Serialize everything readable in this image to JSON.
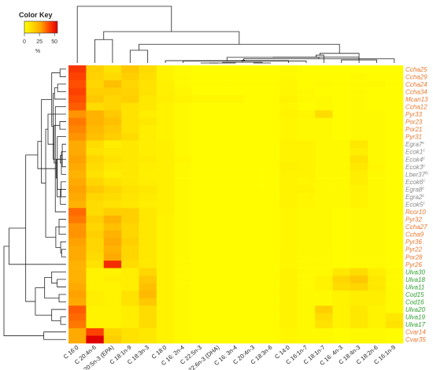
{
  "chart_data": {
    "type": "heatmap",
    "color_key": {
      "title": "Color Key",
      "ticks": [
        "0",
        "25",
        "50"
      ],
      "unit": "%",
      "range": [
        0,
        55
      ],
      "colors": [
        "#ffff00",
        "#ffd700",
        "#ffa500",
        "#ff4500",
        "#e00000"
      ]
    },
    "columns": [
      "C 16:0",
      "C 20:4n-6",
      "C 20:5n-3 (EPA)",
      "C 18:1n-9",
      "C 18:3n-3",
      "C 18:0",
      "C 16: 2n-4",
      "C 22:5n-3",
      "C 22:6n-3 (DHA)",
      "C 16: 3n-4",
      "C 20:4n-3",
      "C 18:3n-6",
      "C 14:0",
      "C 16:1n-7",
      "C 18:1n-7",
      "C 16: 4n-3",
      "C 18:4n-3",
      "C 18:2n-6",
      "C 16:1n-9"
    ],
    "rows": [
      {
        "label": "Ccha25",
        "sup": "",
        "color": "#e8772c",
        "values": [
          44,
          16,
          10,
          18,
          12,
          4,
          2,
          1,
          1,
          1,
          1,
          1,
          2,
          1,
          1,
          1,
          1,
          1,
          1
        ]
      },
      {
        "label": "Ccha29",
        "sup": "",
        "color": "#e8772c",
        "values": [
          42,
          15,
          12,
          16,
          11,
          4,
          2,
          1,
          1,
          1,
          1,
          1,
          2,
          1,
          1,
          1,
          2,
          1,
          1
        ]
      },
      {
        "label": "Ccha24",
        "sup": "",
        "color": "#e8772c",
        "values": [
          40,
          14,
          20,
          14,
          10,
          5,
          2,
          1,
          1,
          1,
          1,
          1,
          3,
          1,
          2,
          1,
          2,
          2,
          1
        ]
      },
      {
        "label": "Ccha34",
        "sup": "",
        "color": "#e8772c",
        "values": [
          42,
          16,
          16,
          15,
          10,
          5,
          3,
          1,
          1,
          1,
          1,
          1,
          3,
          2,
          1,
          1,
          2,
          1,
          1
        ]
      },
      {
        "label": "Mcan13",
        "sup": "",
        "color": "#e8772c",
        "values": [
          40,
          18,
          14,
          16,
          8,
          6,
          4,
          3,
          3,
          3,
          1,
          1,
          4,
          2,
          2,
          1,
          2,
          1,
          1
        ]
      },
      {
        "label": "Ccha12",
        "sup": "",
        "color": "#e8772c",
        "values": [
          38,
          12,
          14,
          10,
          8,
          4,
          2,
          1,
          1,
          1,
          1,
          1,
          3,
          1,
          2,
          1,
          2,
          1,
          1
        ]
      },
      {
        "label": "Pyr33",
        "sup": "",
        "color": "#e8772c",
        "values": [
          30,
          24,
          18,
          10,
          6,
          4,
          2,
          1,
          1,
          1,
          1,
          1,
          4,
          3,
          12,
          1,
          2,
          2,
          1
        ]
      },
      {
        "label": "Por23",
        "sup": "",
        "color": "#e8772c",
        "values": [
          34,
          24,
          20,
          10,
          8,
          4,
          2,
          1,
          1,
          1,
          1,
          1,
          3,
          2,
          2,
          1,
          2,
          2,
          1
        ]
      },
      {
        "label": "Por21",
        "sup": "",
        "color": "#e8772c",
        "values": [
          32,
          22,
          18,
          10,
          6,
          4,
          2,
          1,
          1,
          1,
          1,
          1,
          3,
          2,
          2,
          1,
          2,
          2,
          1
        ]
      },
      {
        "label": "Pyr31",
        "sup": "",
        "color": "#e8772c",
        "values": [
          30,
          20,
          16,
          12,
          6,
          4,
          2,
          1,
          1,
          1,
          1,
          1,
          3,
          2,
          2,
          1,
          2,
          2,
          1
        ]
      },
      {
        "label": "Egra7",
        "sup": "c",
        "color": "#888888",
        "values": [
          26,
          12,
          6,
          8,
          6,
          5,
          2,
          1,
          1,
          1,
          1,
          1,
          4,
          4,
          2,
          2,
          8,
          2,
          1
        ]
      },
      {
        "label": "Ecok1",
        "sup": "c",
        "color": "#888888",
        "values": [
          26,
          10,
          8,
          8,
          6,
          5,
          2,
          1,
          1,
          1,
          1,
          1,
          4,
          4,
          2,
          2,
          6,
          2,
          1
        ]
      },
      {
        "label": "Ecok4",
        "sup": "c",
        "color": "#888888",
        "values": [
          28,
          14,
          10,
          8,
          7,
          5,
          3,
          1,
          1,
          1,
          1,
          1,
          4,
          4,
          2,
          2,
          10,
          2,
          1
        ]
      },
      {
        "label": "Ecok3",
        "sup": "c",
        "color": "#888888",
        "values": [
          26,
          12,
          8,
          8,
          6,
          5,
          2,
          1,
          1,
          1,
          1,
          1,
          5,
          4,
          2,
          2,
          8,
          3,
          1
        ]
      },
      {
        "label": "Lber37",
        "sup": "fc",
        "color": "#888888",
        "values": [
          24,
          10,
          6,
          8,
          5,
          5,
          2,
          1,
          1,
          1,
          1,
          1,
          4,
          4,
          2,
          2,
          6,
          2,
          1
        ]
      },
      {
        "label": "Ecok6",
        "sup": "c",
        "color": "#888888",
        "values": [
          26,
          14,
          10,
          8,
          6,
          5,
          2,
          1,
          1,
          1,
          1,
          1,
          4,
          3,
          2,
          2,
          6,
          2,
          1
        ]
      },
      {
        "label": "Egra8",
        "sup": "c",
        "color": "#888888",
        "values": [
          28,
          18,
          14,
          10,
          8,
          5,
          2,
          1,
          1,
          1,
          1,
          1,
          4,
          4,
          2,
          2,
          4,
          2,
          1
        ]
      },
      {
        "label": "Egra2",
        "sup": "c",
        "color": "#888888",
        "values": [
          26,
          14,
          12,
          9,
          7,
          5,
          2,
          1,
          1,
          1,
          1,
          1,
          4,
          3,
          2,
          2,
          4,
          2,
          1
        ]
      },
      {
        "label": "Ecok5",
        "sup": "c",
        "color": "#888888",
        "values": [
          24,
          12,
          10,
          8,
          6,
          5,
          2,
          1,
          1,
          1,
          1,
          1,
          4,
          3,
          2,
          2,
          4,
          2,
          1
        ]
      },
      {
        "label": "Rcor10",
        "sup": "",
        "color": "#e8772c",
        "values": [
          36,
          12,
          16,
          16,
          8,
          5,
          2,
          1,
          1,
          1,
          1,
          1,
          3,
          2,
          2,
          1,
          2,
          2,
          1
        ]
      },
      {
        "label": "Pyr32",
        "sup": "",
        "color": "#e8772c",
        "values": [
          34,
          16,
          24,
          16,
          8,
          4,
          2,
          1,
          1,
          1,
          1,
          1,
          3,
          2,
          2,
          1,
          2,
          2,
          1
        ]
      },
      {
        "label": "Ccha27",
        "sup": "",
        "color": "#e8772c",
        "values": [
          30,
          14,
          20,
          14,
          8,
          4,
          2,
          1,
          1,
          1,
          1,
          1,
          3,
          2,
          2,
          1,
          2,
          2,
          1
        ]
      },
      {
        "label": "Ccha9",
        "sup": "",
        "color": "#e8772c",
        "values": [
          30,
          16,
          24,
          14,
          8,
          4,
          2,
          1,
          1,
          1,
          1,
          1,
          3,
          2,
          2,
          1,
          2,
          2,
          1
        ]
      },
      {
        "label": "Pyr36",
        "sup": "",
        "color": "#e8772c",
        "values": [
          28,
          14,
          26,
          16,
          8,
          4,
          2,
          1,
          1,
          1,
          1,
          1,
          3,
          2,
          2,
          1,
          2,
          2,
          1
        ]
      },
      {
        "label": "Pyr22",
        "sup": "",
        "color": "#e8772c",
        "values": [
          26,
          14,
          24,
          14,
          8,
          4,
          2,
          1,
          1,
          1,
          1,
          1,
          3,
          2,
          2,
          1,
          2,
          2,
          1
        ]
      },
      {
        "label": "Por28",
        "sup": "",
        "color": "#e8772c",
        "values": [
          26,
          12,
          26,
          14,
          8,
          4,
          2,
          1,
          1,
          1,
          1,
          1,
          3,
          2,
          2,
          1,
          2,
          2,
          1
        ]
      },
      {
        "label": "Pyr26",
        "sup": "",
        "color": "#e8772c",
        "values": [
          24,
          10,
          46,
          12,
          8,
          4,
          2,
          1,
          1,
          1,
          1,
          1,
          3,
          2,
          2,
          1,
          2,
          2,
          1
        ]
      },
      {
        "label": "Ulva30",
        "sup": "",
        "color": "#2e9e2e",
        "values": [
          24,
          4,
          4,
          6,
          14,
          4,
          2,
          1,
          1,
          1,
          1,
          1,
          4,
          2,
          2,
          8,
          12,
          6,
          2
        ]
      },
      {
        "label": "Ulva18",
        "sup": "",
        "color": "#2e9e2e",
        "values": [
          24,
          4,
          6,
          6,
          18,
          4,
          2,
          1,
          1,
          1,
          1,
          1,
          4,
          2,
          4,
          14,
          18,
          8,
          2
        ]
      },
      {
        "label": "Ulva11",
        "sup": "",
        "color": "#2e9e2e",
        "values": [
          26,
          4,
          4,
          6,
          20,
          4,
          2,
          1,
          1,
          1,
          1,
          1,
          4,
          2,
          4,
          12,
          14,
          8,
          2
        ]
      },
      {
        "label": "Cod15",
        "sup": "",
        "color": "#2e9e2e",
        "values": [
          28,
          6,
          4,
          10,
          22,
          4,
          2,
          1,
          1,
          1,
          1,
          1,
          4,
          2,
          2,
          4,
          6,
          6,
          2
        ]
      },
      {
        "label": "Cod16",
        "sup": "",
        "color": "#2e9e2e",
        "values": [
          26,
          6,
          4,
          10,
          18,
          4,
          2,
          1,
          1,
          1,
          1,
          1,
          4,
          2,
          2,
          4,
          6,
          6,
          2
        ]
      },
      {
        "label": "Ulva20",
        "sup": "",
        "color": "#2e9e2e",
        "values": [
          38,
          4,
          4,
          6,
          12,
          4,
          2,
          1,
          1,
          1,
          1,
          1,
          4,
          2,
          16,
          4,
          8,
          4,
          2
        ]
      },
      {
        "label": "Ulva19",
        "sup": "",
        "color": "#2e9e2e",
        "values": [
          36,
          4,
          4,
          6,
          12,
          4,
          2,
          1,
          1,
          1,
          1,
          1,
          4,
          2,
          12,
          4,
          8,
          4,
          8
        ]
      },
      {
        "label": "Ulva17",
        "sup": "",
        "color": "#2e9e2e",
        "values": [
          34,
          4,
          4,
          6,
          12,
          4,
          2,
          1,
          1,
          1,
          1,
          1,
          4,
          2,
          10,
          4,
          8,
          4,
          10
        ]
      },
      {
        "label": "Cvar14",
        "sup": "",
        "color": "#e8772c",
        "values": [
          26,
          42,
          14,
          10,
          8,
          4,
          2,
          1,
          1,
          1,
          1,
          1,
          3,
          2,
          2,
          1,
          2,
          2,
          1
        ]
      },
      {
        "label": "Cvar35",
        "sup": "",
        "color": "#e8772c",
        "values": [
          26,
          56,
          16,
          10,
          8,
          4,
          2,
          1,
          1,
          1,
          1,
          1,
          3,
          2,
          2,
          1,
          2,
          2,
          1
        ]
      }
    ]
  }
}
